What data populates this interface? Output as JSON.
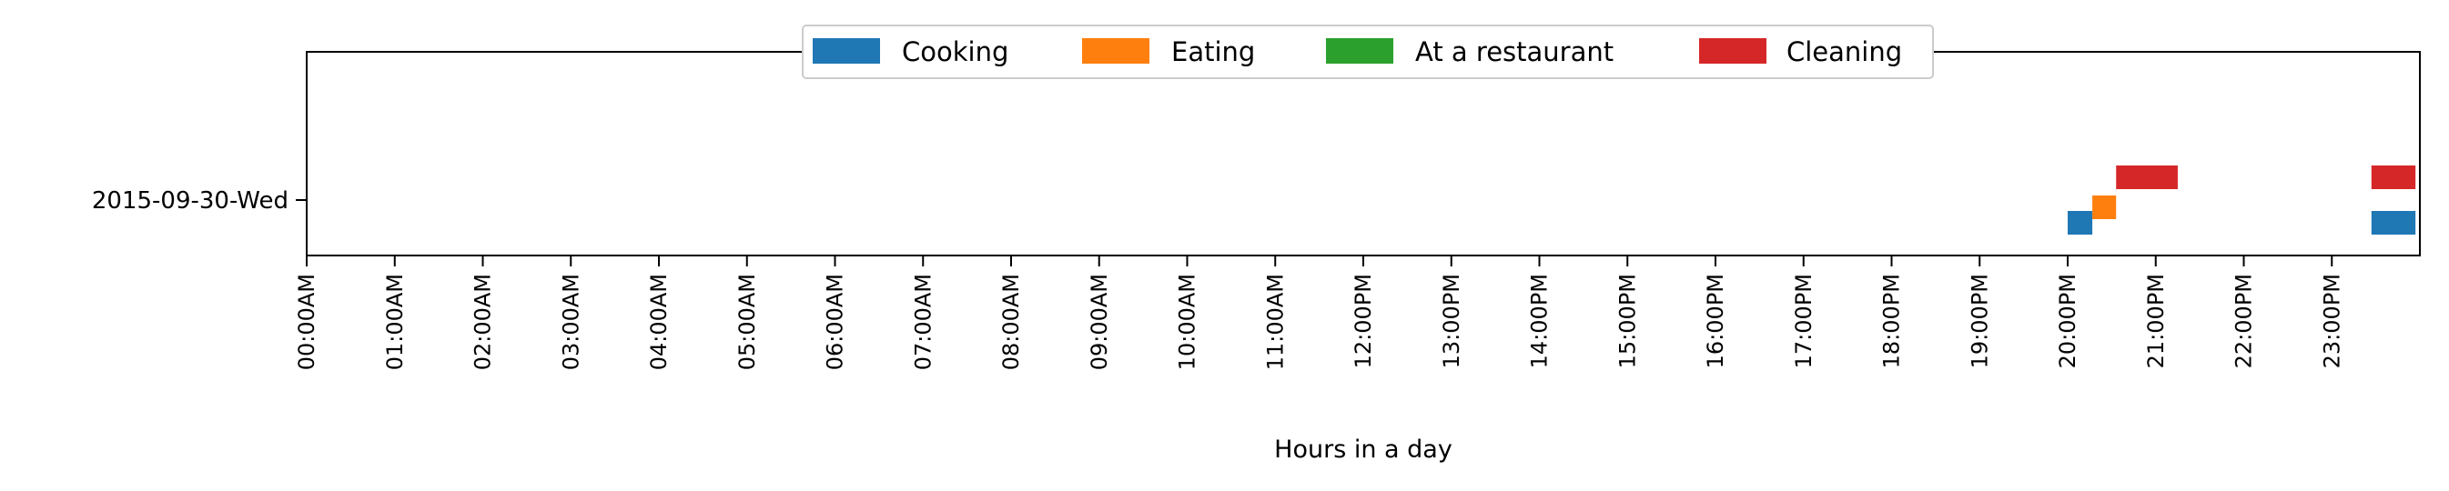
{
  "chart_data": {
    "type": "timeline",
    "xlabel": "Hours in a day",
    "ylabel": "",
    "xlim": [
      0,
      24
    ],
    "x_ticks": [
      "00:00AM",
      "01:00AM",
      "02:00AM",
      "03:00AM",
      "04:00AM",
      "05:00AM",
      "06:00AM",
      "07:00AM",
      "08:00AM",
      "09:00AM",
      "10:00AM",
      "11:00AM",
      "12:00PM",
      "13:00PM",
      "14:00PM",
      "15:00PM",
      "16:00PM",
      "17:00PM",
      "18:00PM",
      "19:00PM",
      "20:00PM",
      "21:00PM",
      "22:00PM",
      "23:00PM"
    ],
    "rows": [
      "2015-09-30-Wed"
    ],
    "legend_position": "top-center",
    "grid": false,
    "series": [
      {
        "name": "Cooking",
        "color": "#1f77b4",
        "intervals": [
          [
            20.0,
            20.28
          ],
          [
            23.45,
            23.95
          ]
        ]
      },
      {
        "name": "Eating",
        "color": "#ff7f0e",
        "intervals": [
          [
            20.28,
            20.55
          ]
        ]
      },
      {
        "name": "At a restaurant",
        "color": "#2ca02c",
        "intervals": []
      },
      {
        "name": "Cleaning",
        "color": "#d62728",
        "intervals": [
          [
            20.55,
            21.25
          ],
          [
            23.45,
            23.95
          ]
        ]
      }
    ]
  }
}
